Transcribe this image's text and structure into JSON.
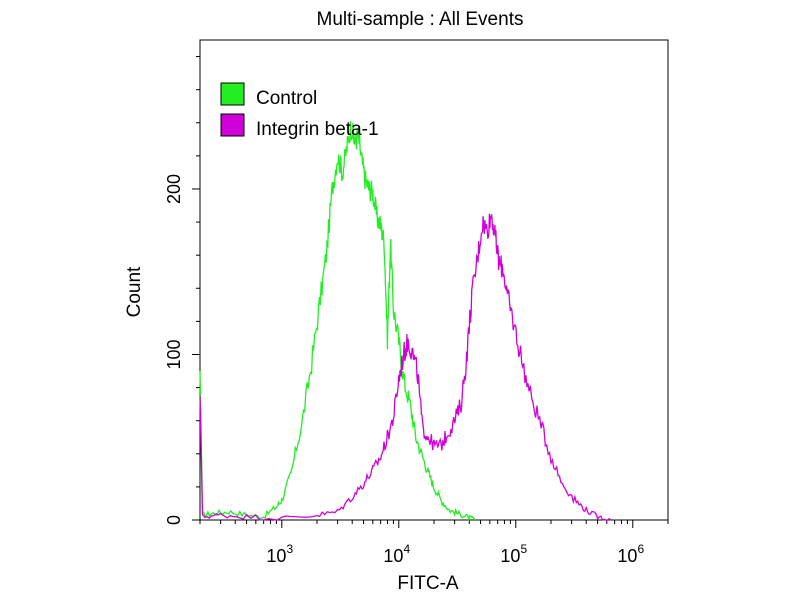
{
  "chart_data": {
    "type": "line",
    "title": "Multi-sample : All Events",
    "xlabel": "FITC-A",
    "ylabel": "Count",
    "x_scale": "log10",
    "xlim": [
      200,
      2000000
    ],
    "ylim": [
      0,
      290
    ],
    "x_ticks": [
      {
        "base": "10",
        "exp": "3",
        "value": 1000
      },
      {
        "base": "10",
        "exp": "4",
        "value": 10000
      },
      {
        "base": "10",
        "exp": "5",
        "value": 100000
      },
      {
        "base": "10",
        "exp": "6",
        "value": 1000000
      }
    ],
    "y_ticks": [
      {
        "label": "0",
        "value": 0
      },
      {
        "label": "100",
        "value": 100
      },
      {
        "label": "200",
        "value": 200
      }
    ],
    "legend_position": "top-left",
    "series": [
      {
        "name": "Control",
        "color": "#22ee22",
        "x": [
          200,
          210,
          260,
          350,
          500,
          700,
          900,
          1000,
          1200,
          1500,
          1800,
          2100,
          2400,
          2700,
          3000,
          3300,
          3600,
          3900,
          4200,
          4500,
          4800,
          5200,
          5600,
          6000,
          6500,
          7000,
          7500,
          8000,
          8500,
          9000,
          10000,
          11000,
          12500,
          14000,
          16000,
          18000,
          20000,
          23000,
          27000,
          32000,
          38000,
          45000
        ],
        "y": [
          90,
          3,
          4,
          5,
          3,
          2,
          8,
          12,
          28,
          60,
          95,
          130,
          160,
          200,
          220,
          210,
          225,
          238,
          228,
          232,
          218,
          205,
          200,
          198,
          183,
          178,
          168,
          110,
          168,
          128,
          108,
          85,
          70,
          50,
          38,
          28,
          20,
          12,
          6,
          4,
          2,
          0
        ]
      },
      {
        "name": "Integrin beta-1",
        "color": "#d000d8",
        "x": [
          200,
          210,
          300,
          500,
          1000,
          2000,
          3000,
          4000,
          5000,
          6000,
          7000,
          8000,
          9000,
          10000,
          11000,
          12000,
          13000,
          14500,
          16000,
          18000,
          20000,
          23000,
          26000,
          30000,
          34000,
          38000,
          42000,
          47000,
          52000,
          57000,
          62000,
          67000,
          72000,
          78000,
          85000,
          95000,
          110000,
          130000,
          160000,
          200000,
          250000,
          320000,
          400000,
          500000,
          650000
        ],
        "y": [
          75,
          2,
          3,
          2,
          1,
          3,
          5,
          14,
          22,
          30,
          38,
          50,
          62,
          85,
          100,
          108,
          102,
          88,
          55,
          50,
          45,
          45,
          52,
          60,
          70,
          98,
          135,
          158,
          180,
          175,
          185,
          170,
          155,
          152,
          135,
          120,
          100,
          78,
          60,
          38,
          22,
          12,
          6,
          2,
          0
        ]
      }
    ]
  }
}
